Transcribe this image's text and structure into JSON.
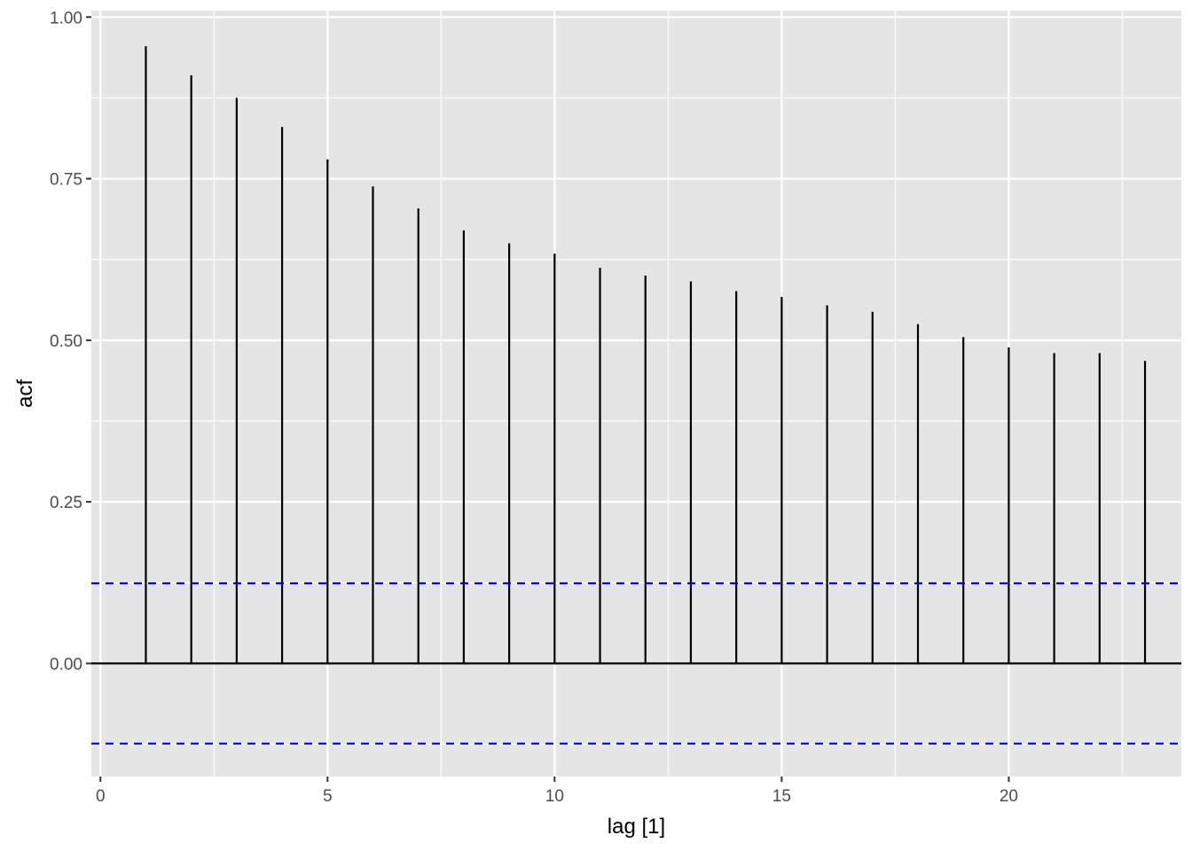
{
  "chart_data": {
    "type": "bar",
    "xlabel": "lag [1]",
    "ylabel": "acf",
    "x": [
      1,
      2,
      3,
      4,
      5,
      6,
      7,
      8,
      9,
      10,
      11,
      12,
      13,
      14,
      15,
      16,
      17,
      18,
      19,
      20,
      21,
      22,
      23
    ],
    "values": [
      0.955,
      0.91,
      0.875,
      0.83,
      0.78,
      0.738,
      0.704,
      0.67,
      0.65,
      0.634,
      0.612,
      0.6,
      0.591,
      0.576,
      0.567,
      0.554,
      0.544,
      0.525,
      0.505,
      0.489,
      0.48,
      0.48,
      0.468
    ],
    "confidence_bound": 0.124,
    "xlim": [
      -0.2,
      23.8
    ],
    "ylim": [
      -0.175,
      1.01
    ],
    "x_ticks": [
      0,
      5,
      10,
      15,
      20
    ],
    "x_tick_labels": [
      "0",
      "5",
      "10",
      "15",
      "20"
    ],
    "y_ticks": [
      0,
      0.25,
      0.5,
      0.75,
      1.0
    ],
    "y_tick_labels": [
      "0.00",
      "0.25",
      "0.50",
      "0.75",
      "1.00"
    ],
    "grid": true,
    "colors": {
      "panel": "#e5e5e5",
      "grid": "#ffffff",
      "bars": "#000000",
      "confidence": "#0000ff"
    }
  }
}
